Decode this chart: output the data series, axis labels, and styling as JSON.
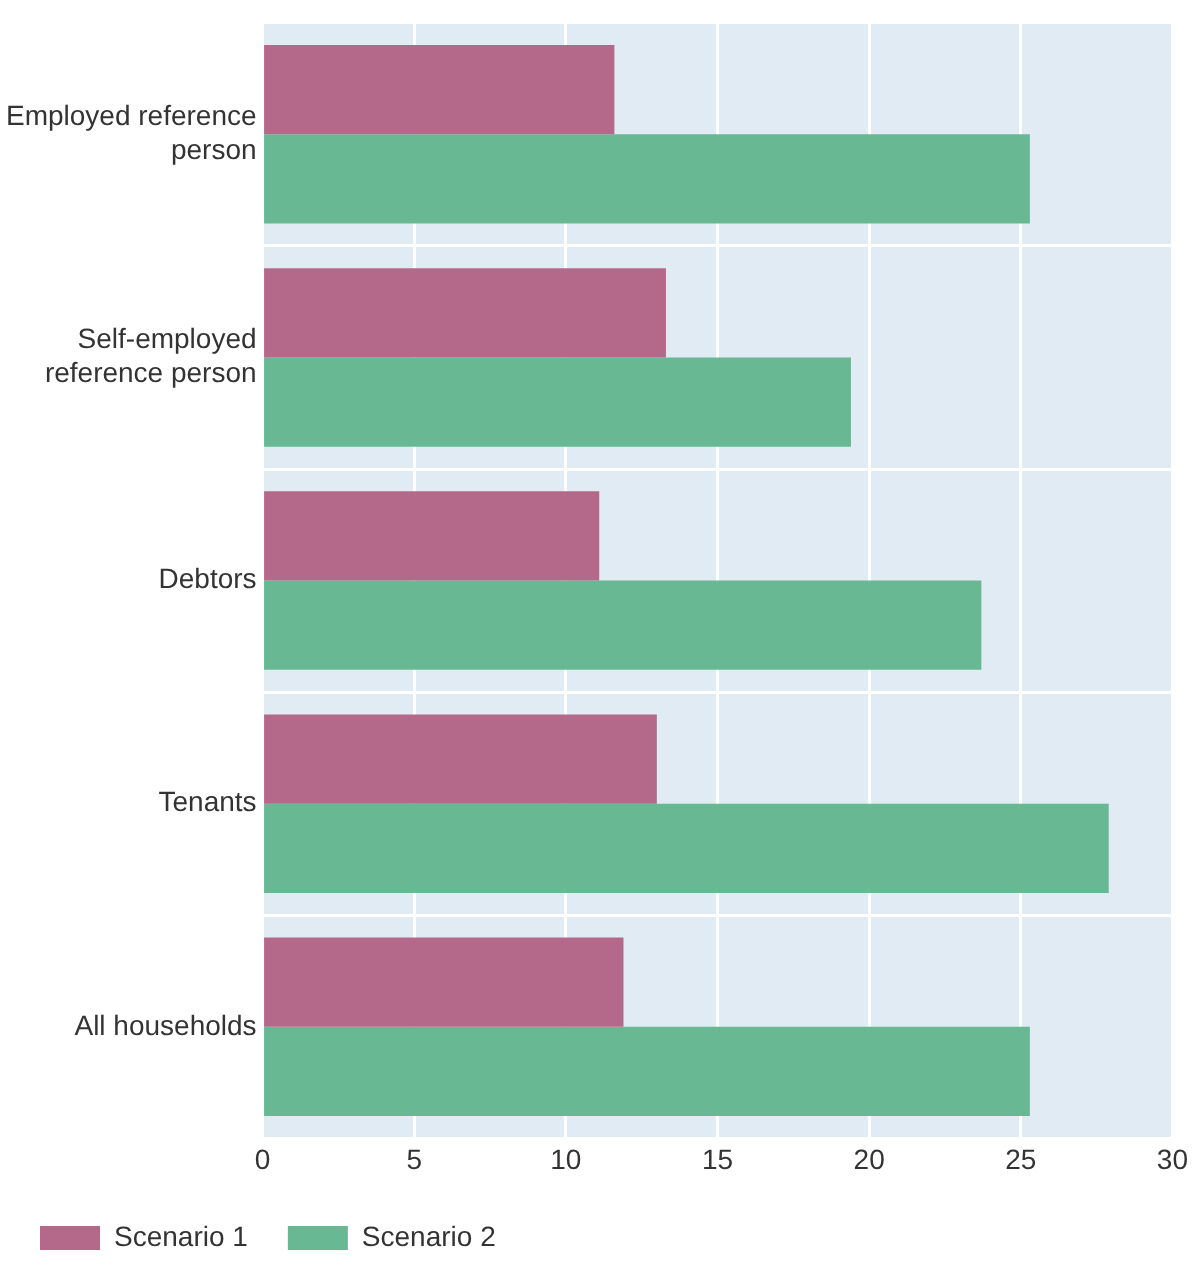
{
  "chart_data": {
    "type": "bar",
    "orientation": "horizontal",
    "categories": [
      "Employed reference person",
      "Self-employed reference person",
      "Debtors",
      "Tenants",
      "All households"
    ],
    "series": [
      {
        "name": "Scenario 1",
        "color": "#b5698a",
        "values": [
          11.6,
          13.3,
          11.1,
          13.0,
          11.9
        ]
      },
      {
        "name": "Scenario 2",
        "color": "#68b894",
        "values": [
          25.3,
          19.4,
          23.7,
          27.9,
          25.3
        ]
      }
    ],
    "xlim": [
      0,
      30
    ],
    "xticks": [
      0,
      5,
      10,
      15,
      20,
      25,
      30
    ],
    "grid": true,
    "legend": "bottom left"
  }
}
